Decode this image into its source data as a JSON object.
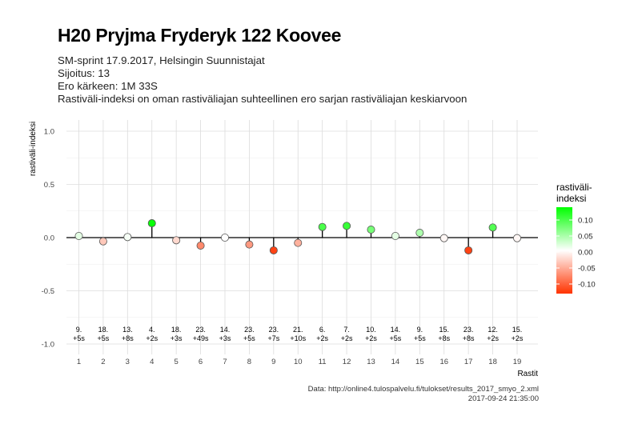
{
  "title": "H20 Pryjma Fryderyk 122 Koovee",
  "subtitle_lines": [
    "SM-sprint 17.9.2017, Helsingin Suunnistajat",
    "Sijoitus: 13",
    "Ero kärkeen: 1M 33S",
    "Rastiväli-indeksi on oman rastiväliajan suhteellinen ero sarjan rastiväliajan keskiarvoon"
  ],
  "caption_lines": [
    "Data: http://online4.tulospalvelu.fi/tulokset/results_2017_smyo_2.xml",
    "2017-09-24 21:35:00"
  ],
  "colors": {
    "positive": "#00ff00",
    "zero": "#ffffff",
    "negative": "#ff3300"
  },
  "chart_data": {
    "type": "scatter",
    "xlabel": "Rastit",
    "ylabel": "rastiväli-indeksi",
    "ylim": [
      -1.0,
      1.0
    ],
    "y_ticks": [
      1.0,
      0.5,
      0.0,
      -0.5,
      -1.0
    ],
    "y_tick_labels": [
      "1.0",
      "0.5",
      "0.0",
      "-0.5",
      "-1.0"
    ],
    "categories": [
      "1",
      "2",
      "3",
      "4",
      "5",
      "6",
      "7",
      "8",
      "9",
      "10",
      "11",
      "12",
      "13",
      "14",
      "15",
      "16",
      "17",
      "18",
      "19"
    ],
    "values": [
      0.015,
      -0.035,
      0.005,
      0.135,
      -0.025,
      -0.075,
      0.0,
      -0.065,
      -0.12,
      -0.05,
      0.1,
      0.11,
      0.075,
      0.015,
      0.045,
      -0.005,
      -0.12,
      0.095,
      -0.005
    ],
    "point_labels": [
      [
        "9.",
        "+5s"
      ],
      [
        "18.",
        "+5s"
      ],
      [
        "13.",
        "+8s"
      ],
      [
        "4.",
        "+2s"
      ],
      [
        "18.",
        "+3s"
      ],
      [
        "23.",
        "+49s"
      ],
      [
        "14.",
        "+3s"
      ],
      [
        "23.",
        "+5s"
      ],
      [
        "23.",
        "+7s"
      ],
      [
        "21.",
        "+10s"
      ],
      [
        "6.",
        "+2s"
      ],
      [
        "7.",
        "+2s"
      ],
      [
        "10.",
        "+2s"
      ],
      [
        "14.",
        "+5s"
      ],
      [
        "9.",
        "+5s"
      ],
      [
        "15.",
        "+8s"
      ],
      [
        "23.",
        "+8s"
      ],
      [
        "12.",
        "+2s"
      ],
      [
        "15.",
        "+2s"
      ]
    ],
    "legend": {
      "title_lines": [
        "rastiväli-",
        "indeksi"
      ],
      "ticks": [
        0.1,
        0.05,
        0.0,
        -0.05,
        -0.1
      ],
      "tick_labels": [
        "0.10",
        "0.05",
        "0.00",
        "-0.05",
        "-0.10"
      ],
      "range": [
        -0.13,
        0.14
      ],
      "placement": "right"
    },
    "grid": true
  }
}
